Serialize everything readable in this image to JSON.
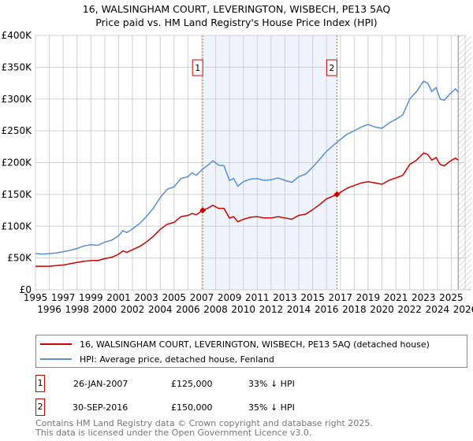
{
  "chart_data": {
    "type": "line",
    "title": "16, WALSINGHAM COURT, LEVERINGTON, WISBECH, PE13 5AQ",
    "subtitle": "Price paid vs. HM Land Registry's House Price Index (HPI)",
    "xlim": [
      1995,
      2026
    ],
    "ylim": [
      0,
      400000
    ],
    "y_ticks": [
      {
        "v": 0,
        "label": "£0"
      },
      {
        "v": 50000,
        "label": "£50K"
      },
      {
        "v": 100000,
        "label": "£100K"
      },
      {
        "v": 150000,
        "label": "£150K"
      },
      {
        "v": 200000,
        "label": "£200K"
      },
      {
        "v": 250000,
        "label": "£250K"
      },
      {
        "v": 300000,
        "label": "£300K"
      },
      {
        "v": 350000,
        "label": "£350K"
      },
      {
        "v": 400000,
        "label": "£400K"
      }
    ],
    "x_ticks": [
      "1995",
      "1996",
      "1997",
      "1998",
      "1999",
      "2000",
      "2001",
      "2002",
      "2003",
      "2004",
      "2005",
      "2006",
      "2007",
      "2008",
      "2009",
      "2010",
      "2011",
      "2012",
      "2013",
      "2014",
      "2015",
      "2016",
      "2017",
      "2018",
      "2019",
      "2020",
      "2021",
      "2022",
      "2023",
      "2024",
      "2025",
      "2026"
    ],
    "grid": true,
    "x": [
      1995,
      1995.5,
      1996,
      1996.5,
      1997,
      1997.5,
      1998,
      1998.5,
      1999,
      1999.5,
      2000,
      2000.5,
      2001,
      2001.3,
      2001.6,
      2002,
      2002.5,
      2003,
      2003.5,
      2004,
      2004.5,
      2005,
      2005.5,
      2006,
      2006.3,
      2006.6,
      2007.07,
      2007.5,
      2007.8,
      2008.2,
      2008.6,
      2009,
      2009.3,
      2009.6,
      2010,
      2010.5,
      2011,
      2011.5,
      2012,
      2012.5,
      2013,
      2013.5,
      2014,
      2014.5,
      2015,
      2015.5,
      2016,
      2016.75,
      2017.5,
      2018,
      2018.5,
      2019,
      2019.5,
      2020,
      2020.5,
      2021,
      2021.5,
      2022,
      2022.5,
      2023,
      2023.3,
      2023.6,
      2023.9,
      2024.2,
      2024.5,
      2024.9,
      2025.3,
      2025.5
    ],
    "series": [
      {
        "name": "16, WALSINGHAM COURT, LEVERINGTON, WISBECH, PE13 5AQ (detached house)",
        "color": "#cc0000",
        "values": [
          37000,
          37000,
          37000,
          38000,
          39000,
          41000,
          43000,
          45000,
          46000,
          46000,
          49000,
          51000,
          56000,
          61000,
          59000,
          63000,
          68000,
          75000,
          84000,
          95000,
          103000,
          106000,
          115000,
          117000,
          120000,
          118000,
          125000,
          129000,
          133000,
          128000,
          128000,
          113000,
          115000,
          107000,
          111000,
          114000,
          115000,
          113000,
          113000,
          115000,
          113000,
          111000,
          117000,
          119000,
          126000,
          134000,
          143000,
          150000,
          160000,
          164000,
          168000,
          170000,
          168000,
          166000,
          172000,
          176000,
          180000,
          197000,
          204000,
          215000,
          213000,
          204000,
          208000,
          197000,
          195000,
          202000,
          207000,
          204000
        ]
      },
      {
        "name": "HPI: Average price, detached house, Fenland",
        "color": "#5b8fd0",
        "values": [
          57000,
          56000,
          57000,
          58000,
          60000,
          62000,
          65000,
          69000,
          71000,
          70000,
          75000,
          78000,
          85000,
          93000,
          90000,
          96000,
          104000,
          115000,
          128000,
          145000,
          158000,
          162000,
          175000,
          178000,
          184000,
          180000,
          190000,
          197000,
          203000,
          196000,
          195000,
          172000,
          175000,
          163000,
          170000,
          174000,
          175000,
          172000,
          173000,
          176000,
          172000,
          169000,
          178000,
          182000,
          193000,
          205000,
          218000,
          232000,
          245000,
          250000,
          256000,
          260000,
          256000,
          254000,
          262000,
          268000,
          275000,
          300000,
          312000,
          328000,
          325000,
          312000,
          318000,
          300000,
          298000,
          308000,
          316000,
          311000
        ]
      }
    ],
    "annotations": [
      {
        "label": "1",
        "x": 2007.07,
        "y": 125000
      },
      {
        "label": "2",
        "x": 2016.75,
        "y": 150000
      }
    ],
    "shaded_range": [
      2007.07,
      2016.75
    ],
    "hatched_from": 2025.5,
    "legend_placement": "bottom"
  },
  "legend": [
    {
      "label": "16, WALSINGHAM COURT, LEVERINGTON, WISBECH, PE13 5AQ (detached house)",
      "color": "#cc0000"
    },
    {
      "label": "HPI: Average price, detached house, Fenland",
      "color": "#5b8fd0"
    }
  ],
  "sales": [
    {
      "num": "1",
      "date": "26-JAN-2007",
      "price": "£125,000",
      "hpi": "33% ↓ HPI"
    },
    {
      "num": "2",
      "date": "30-SEP-2016",
      "price": "£150,000",
      "hpi": "35% ↓ HPI"
    }
  ],
  "footer": {
    "line1": "Contains HM Land Registry data © Crown copyright and database right 2025.",
    "line2": "This data is licensed under the Open Government Licence v3.0."
  }
}
